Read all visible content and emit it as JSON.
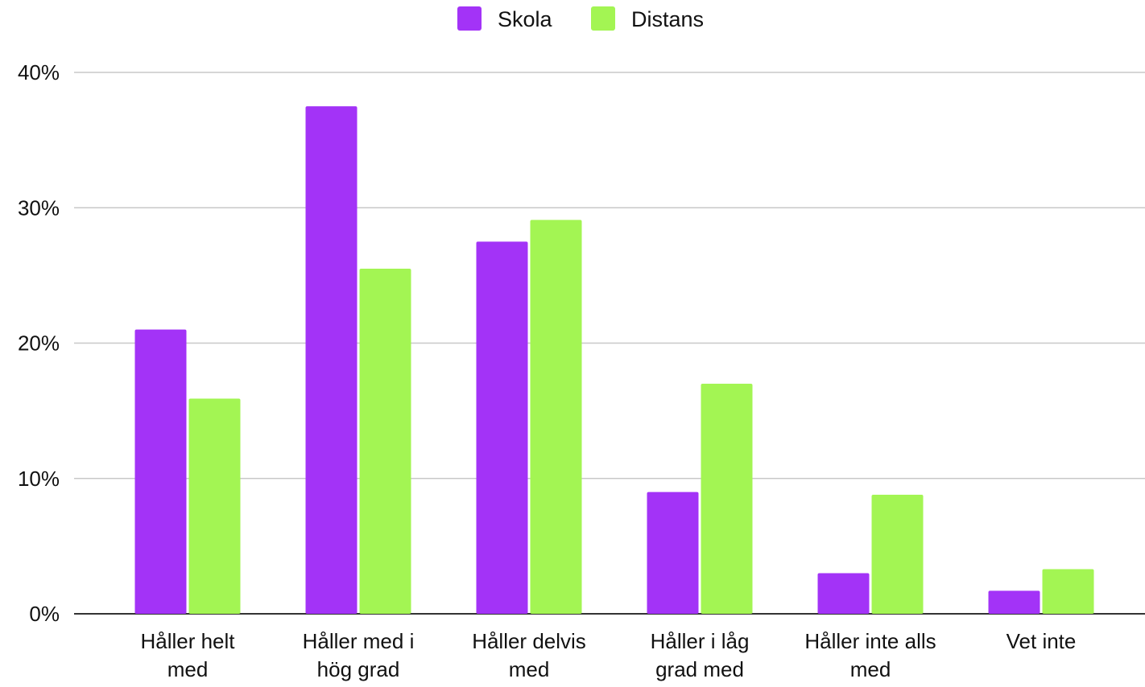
{
  "chart_data": {
    "type": "bar",
    "categories": [
      [
        "Håller helt",
        "med"
      ],
      [
        "Håller med i",
        "hög grad"
      ],
      [
        "Håller delvis",
        "med"
      ],
      [
        "Håller i låg",
        "grad med"
      ],
      [
        "Håller inte alls",
        "med"
      ],
      [
        "Vet inte"
      ]
    ],
    "series": [
      {
        "name": "Skola",
        "color": "#a333f7",
        "values": [
          21,
          37.5,
          27.5,
          9,
          3,
          1.7
        ]
      },
      {
        "name": "Distans",
        "color": "#a3f553",
        "values": [
          15.9,
          25.5,
          29.1,
          17,
          8.8,
          3.3
        ]
      }
    ],
    "yticks": [
      "0%",
      "10%",
      "20%",
      "30%",
      "40%"
    ],
    "ylim": [
      0,
      40
    ],
    "legend_position": "top-center",
    "grid": true
  }
}
